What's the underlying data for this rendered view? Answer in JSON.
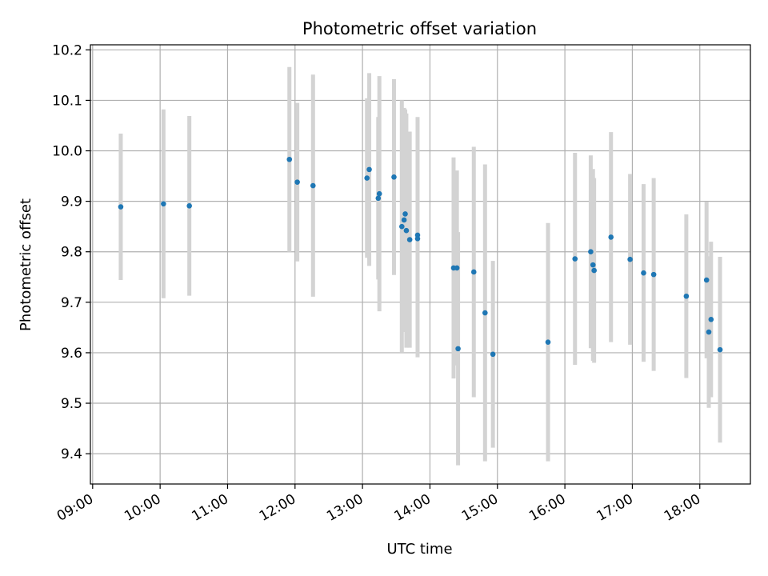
{
  "chart_data": {
    "type": "scatter",
    "title": "Photometric offset variation",
    "xlabel": "UTC time",
    "ylabel": "Photometric offset",
    "x_is_time": true,
    "xlim": [
      "08:58",
      "18:45"
    ],
    "ylim": [
      9.34,
      10.21
    ],
    "x_ticks": [
      "09:00",
      "10:00",
      "11:00",
      "12:00",
      "13:00",
      "14:00",
      "15:00",
      "16:00",
      "17:00",
      "18:00"
    ],
    "y_ticks": [
      9.4,
      9.5,
      9.6,
      9.7,
      9.8,
      9.9,
      10.0,
      10.1,
      10.2
    ],
    "grid": true,
    "legend": "none",
    "marker_color": "#1f77b4",
    "errorbar_color": "#d3d3d3",
    "series": [
      {
        "points": [
          {
            "x": "09:25",
            "y": 9.889,
            "yerr": 0.145
          },
          {
            "x": "10:03",
            "y": 9.895,
            "yerr": 0.187
          },
          {
            "x": "10:26",
            "y": 9.891,
            "yerr": 0.178
          },
          {
            "x": "11:55",
            "y": 9.983,
            "yerr": 0.183
          },
          {
            "x": "12:02",
            "y": 9.938,
            "yerr": 0.157
          },
          {
            "x": "12:16",
            "y": 9.931,
            "yerr": 0.22
          },
          {
            "x": "13:04",
            "y": 9.946,
            "yerr": 0.158
          },
          {
            "x": "13:06",
            "y": 9.963,
            "yerr": 0.191
          },
          {
            "x": "13:14",
            "y": 9.906,
            "yerr": 0.161
          },
          {
            "x": "13:15",
            "y": 9.915,
            "yerr": 0.233
          },
          {
            "x": "13:28",
            "y": 9.948,
            "yerr": 0.194
          },
          {
            "x": "13:35",
            "y": 9.85,
            "yerr": 0.25
          },
          {
            "x": "13:37",
            "y": 9.863,
            "yerr": 0.222
          },
          {
            "x": "13:38",
            "y": 9.875,
            "yerr": 0.207
          },
          {
            "x": "13:39",
            "y": 9.842,
            "yerr": 0.232
          },
          {
            "x": "13:42",
            "y": 9.824,
            "yerr": 0.214
          },
          {
            "x": "13:49",
            "y": 9.833,
            "yerr": 0.234
          },
          {
            "x": "13:49",
            "y": 9.826,
            "yerr": 0.235
          },
          {
            "x": "14:21",
            "y": 9.768,
            "yerr": 0.219
          },
          {
            "x": "14:24",
            "y": 9.768,
            "yerr": 0.193
          },
          {
            "x": "14:25",
            "y": 9.608,
            "yerr": 0.231
          },
          {
            "x": "14:39",
            "y": 9.76,
            "yerr": 0.248
          },
          {
            "x": "14:49",
            "y": 9.679,
            "yerr": 0.294
          },
          {
            "x": "14:56",
            "y": 9.597,
            "yerr": 0.185
          },
          {
            "x": "15:45",
            "y": 9.621,
            "yerr": 0.236
          },
          {
            "x": "16:09",
            "y": 9.786,
            "yerr": 0.21
          },
          {
            "x": "16:23",
            "y": 9.8,
            "yerr": 0.191
          },
          {
            "x": "16:25",
            "y": 9.774,
            "yerr": 0.19
          },
          {
            "x": "16:26",
            "y": 9.763,
            "yerr": 0.183
          },
          {
            "x": "16:41",
            "y": 9.829,
            "yerr": 0.208
          },
          {
            "x": "16:58",
            "y": 9.785,
            "yerr": 0.169
          },
          {
            "x": "17:10",
            "y": 9.758,
            "yerr": 0.176
          },
          {
            "x": "17:19",
            "y": 9.755,
            "yerr": 0.191
          },
          {
            "x": "17:48",
            "y": 9.712,
            "yerr": 0.162
          },
          {
            "x": "18:06",
            "y": 9.744,
            "yerr": 0.155
          },
          {
            "x": "18:08",
            "y": 9.641,
            "yerr": 0.15
          },
          {
            "x": "18:10",
            "y": 9.666,
            "yerr": 0.154
          },
          {
            "x": "18:18",
            "y": 9.606,
            "yerr": 0.184
          }
        ]
      }
    ]
  }
}
